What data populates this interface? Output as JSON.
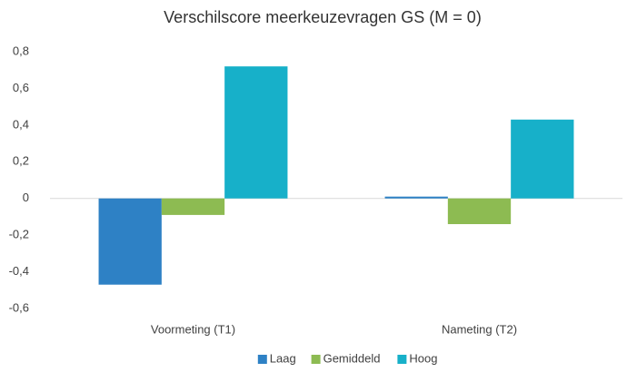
{
  "chart_data": {
    "type": "bar",
    "title": "Verschilscore meerkeuzevragen GS (M = 0)",
    "categories": [
      "Voormeting (T1)",
      "Nameting (T2)"
    ],
    "series": [
      {
        "name": "Laag",
        "color": "#2e81c5",
        "values": [
          -0.47,
          0.01
        ]
      },
      {
        "name": "Gemiddeld",
        "color": "#8dbb52",
        "values": [
          -0.09,
          -0.14
        ]
      },
      {
        "name": "Hoog",
        "color": "#17b0c9",
        "values": [
          0.72,
          0.43
        ]
      }
    ],
    "ylim": [
      -0.6,
      0.8
    ],
    "yticks": [
      {
        "value": -0.6,
        "label": "-0,6"
      },
      {
        "value": -0.4,
        "label": "-0,4"
      },
      {
        "value": -0.2,
        "label": "-0,2"
      },
      0,
      {
        "value": 0.2,
        "label": "0,2"
      },
      {
        "value": 0.4,
        "label": "0,4"
      },
      {
        "value": 0.6,
        "label": "0,6"
      },
      {
        "value": 0.8,
        "label": "0,8"
      }
    ],
    "grid": false,
    "legend": "bottom"
  }
}
